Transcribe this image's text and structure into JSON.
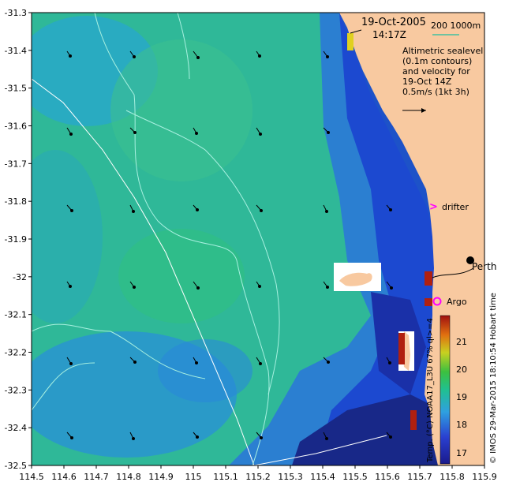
{
  "header": {
    "date": "19-Oct-2005",
    "time": "14:17Z",
    "scale_bar": "200   1000m"
  },
  "info_box": {
    "lines": [
      "Altimetric sealevel",
      "(0.1m contours)",
      "and velocity for",
      "19-Oct 14Z",
      "0.5m/s (1kt 3h)"
    ]
  },
  "places": {
    "perth": "Perth",
    "drifter": "drifter",
    "argo": "Argo"
  },
  "colorbar": {
    "title": "Temp. (°C) NOAA17_L3U 67% ql>=4",
    "ticks": [
      "21",
      "20",
      "19",
      "18",
      "17"
    ],
    "range": [
      16.5,
      21.8
    ]
  },
  "credit": "© IMOS 29-Mar-2015 18:10:54 Hobart time",
  "axes": {
    "x_ticks": [
      "114.5",
      "114.6",
      "114.7",
      "114.8",
      "114.9",
      "115",
      "115.1",
      "115.2",
      "115.3",
      "115.4",
      "115.5",
      "115.6",
      "115.7",
      "115.8",
      "115.9"
    ],
    "y_ticks": [
      "-31.3",
      "-31.4",
      "-31.5",
      "-31.6",
      "-31.7",
      "-31.8",
      "-31.9",
      "-32",
      "-32.1",
      "-32.2",
      "-32.3",
      "-32.4",
      "-32.5"
    ],
    "xlim": [
      114.5,
      115.9
    ],
    "ylim": [
      -32.5,
      -31.3
    ]
  },
  "colors": {
    "land": "#f8c9a0",
    "drifter_marker": "#ff00ff",
    "argo_marker": "#ff00ff",
    "contour": "#a8f0e0"
  }
}
